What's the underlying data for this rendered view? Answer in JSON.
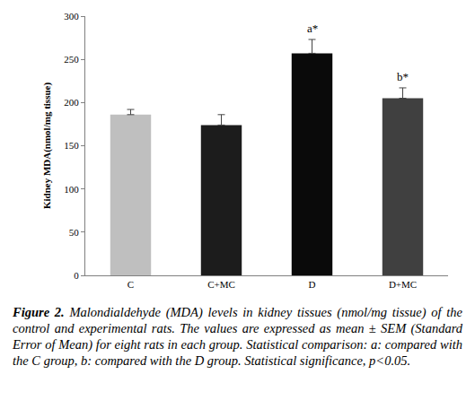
{
  "chart_data": {
    "type": "bar",
    "ylabel": "Kidney MDA(nmol/mg tissue)",
    "categories": [
      "C",
      "C+MC",
      "D",
      "D+MC"
    ],
    "values": [
      186,
      174,
      257,
      205
    ],
    "errors": [
      6,
      12,
      16,
      12
    ],
    "colors": [
      "#bfbfbf",
      "#1c1c1c",
      "#0a0a0a",
      "#404040"
    ],
    "ylim": [
      0,
      300
    ],
    "yticks": [
      0,
      50,
      100,
      150,
      200,
      250,
      300
    ],
    "grid": false,
    "annotations": [
      {
        "text": "a*",
        "x": "D"
      },
      {
        "text": "b*",
        "x": "D+MC"
      }
    ]
  },
  "caption": {
    "label": "Figure 2.",
    "text": "Malondialdehyde (MDA) levels in kidney tissues (nmol/mg tissue) of the control and experimental rats. The values are expressed as mean ± SEM (Standard Error of Mean) for eight rats in each group. Statistical comparison: a: compared with the C group, b: compared with the D group. Statistical significance, p<0.05."
  }
}
